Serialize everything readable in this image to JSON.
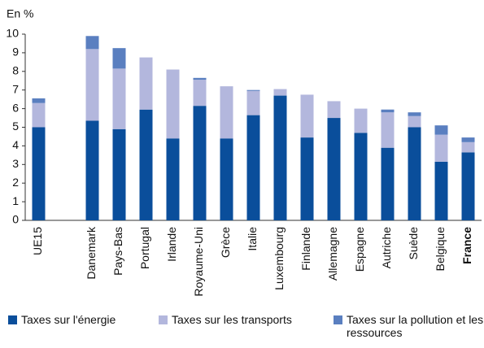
{
  "chart_data": {
    "type": "stacked_bar",
    "title": "En %",
    "categories": [
      "UE15",
      null,
      "Danemark",
      "Pays-Bas",
      "Portugal",
      "Irlande",
      "Royaume-Uni",
      "Grèce",
      "Italie",
      "Luxembourg",
      "Finlande",
      "Allemagne",
      "Espagne",
      "Autriche",
      "Suède",
      "Belgique",
      "France"
    ],
    "series": [
      {
        "name": "Taxes sur l'énergie",
        "color": "#0a4e9b",
        "values": [
          5.0,
          null,
          5.35,
          4.9,
          5.95,
          4.4,
          6.15,
          4.4,
          5.65,
          6.7,
          4.45,
          5.5,
          4.7,
          3.9,
          5.0,
          3.15,
          3.65
        ]
      },
      {
        "name": "Taxes sur les transports",
        "color": "#b3b7dd",
        "values": [
          1.3,
          null,
          3.85,
          3.25,
          2.8,
          3.7,
          1.4,
          2.8,
          1.3,
          0.35,
          2.3,
          0.9,
          1.3,
          1.9,
          0.6,
          1.45,
          0.55
        ]
      },
      {
        "name": "Taxes sur la pollution et les ressources",
        "color": "#5a7fc0",
        "values": [
          0.25,
          null,
          0.7,
          1.1,
          0,
          0,
          0.1,
          0,
          0.05,
          0,
          0,
          0,
          0,
          0.15,
          0.2,
          0.5,
          0.25
        ]
      }
    ],
    "ylim": [
      0,
      10
    ],
    "yticks": [
      0,
      1,
      2,
      3,
      4,
      5,
      6,
      7,
      8,
      9,
      10
    ],
    "grid": false
  }
}
